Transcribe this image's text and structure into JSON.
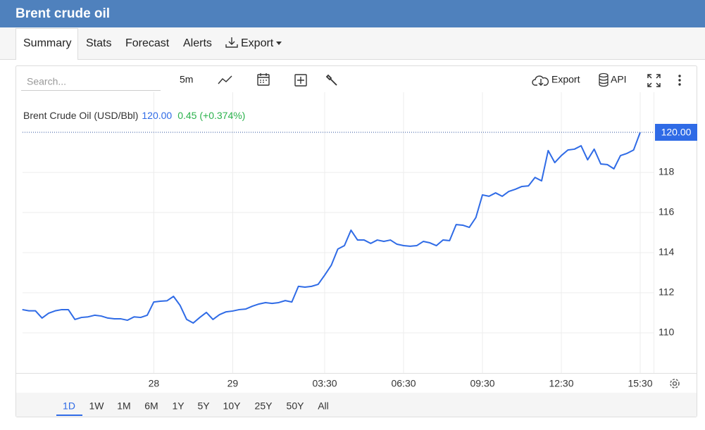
{
  "header": {
    "title": "Brent crude oil"
  },
  "tabs": [
    "Summary",
    "Stats",
    "Forecast",
    "Alerts",
    "Export"
  ],
  "toolbar": {
    "search_placeholder": "Search...",
    "interval": "5m",
    "export": "Export",
    "api": "API"
  },
  "ranges": [
    "1D",
    "1W",
    "1M",
    "6M",
    "1Y",
    "5Y",
    "10Y",
    "25Y",
    "50Y",
    "All"
  ],
  "chart_data": {
    "type": "line",
    "categories": [
      null,
      null,
      null,
      null,
      null,
      null,
      null,
      null,
      null,
      null,
      null,
      null,
      null,
      null,
      null,
      null,
      null,
      null,
      null,
      null,
      "28",
      null,
      null,
      null,
      null,
      null,
      null,
      null,
      null,
      null,
      null,
      null,
      "29",
      null,
      null,
      null,
      null,
      null,
      null,
      null,
      null,
      null,
      null,
      null,
      null,
      null,
      "03:30",
      null,
      null,
      null,
      null,
      null,
      null,
      null,
      null,
      null,
      null,
      null,
      "06:30",
      null,
      null,
      null,
      null,
      null,
      null,
      null,
      null,
      null,
      null,
      null,
      "09:30",
      null,
      null,
      null,
      null,
      null,
      null,
      null,
      null,
      null,
      null,
      null,
      "12:30",
      null,
      null,
      null,
      null,
      null,
      null,
      null,
      null,
      null,
      null,
      null,
      "15:30"
    ],
    "series": [
      {
        "name": "Brent Crude Oil (USD/Bbl)",
        "color": "#2f6be6",
        "values": [
          111.16,
          111.1,
          111.1,
          110.74,
          110.98,
          111.1,
          111.16,
          111.16,
          110.67,
          110.77,
          110.8,
          110.88,
          110.84,
          110.74,
          110.7,
          110.7,
          110.63,
          110.8,
          110.77,
          110.88,
          111.54,
          111.58,
          111.6,
          111.82,
          111.37,
          110.67,
          110.49,
          110.77,
          111.02,
          110.67,
          110.91,
          111.05,
          111.09,
          111.16,
          111.19,
          111.33,
          111.44,
          111.51,
          111.47,
          111.51,
          111.61,
          111.54,
          112.32,
          112.28,
          112.32,
          112.42,
          112.88,
          113.37,
          114.18,
          114.35,
          115.12,
          114.63,
          114.63,
          114.46,
          114.63,
          114.56,
          114.63,
          114.42,
          114.35,
          114.32,
          114.35,
          114.56,
          114.49,
          114.35,
          114.63,
          114.6,
          115.4,
          115.37,
          115.26,
          115.75,
          116.88,
          116.81,
          116.98,
          116.81,
          117.05,
          117.16,
          117.3,
          117.33,
          117.75,
          117.58,
          119.09,
          118.49,
          118.84,
          119.12,
          119.16,
          119.33,
          118.63,
          119.16,
          118.42,
          118.39,
          118.18,
          118.84,
          118.95,
          119.12,
          120.0
        ]
      }
    ],
    "last_value_label": "120.00",
    "change_label": "0.45 (+0.374%)",
    "change_color": "#2bb24c",
    "price_tag": "120.00",
    "ylim": [
      108,
      122
    ],
    "yticks": [
      110,
      112,
      114,
      116,
      118
    ],
    "grid": true
  }
}
